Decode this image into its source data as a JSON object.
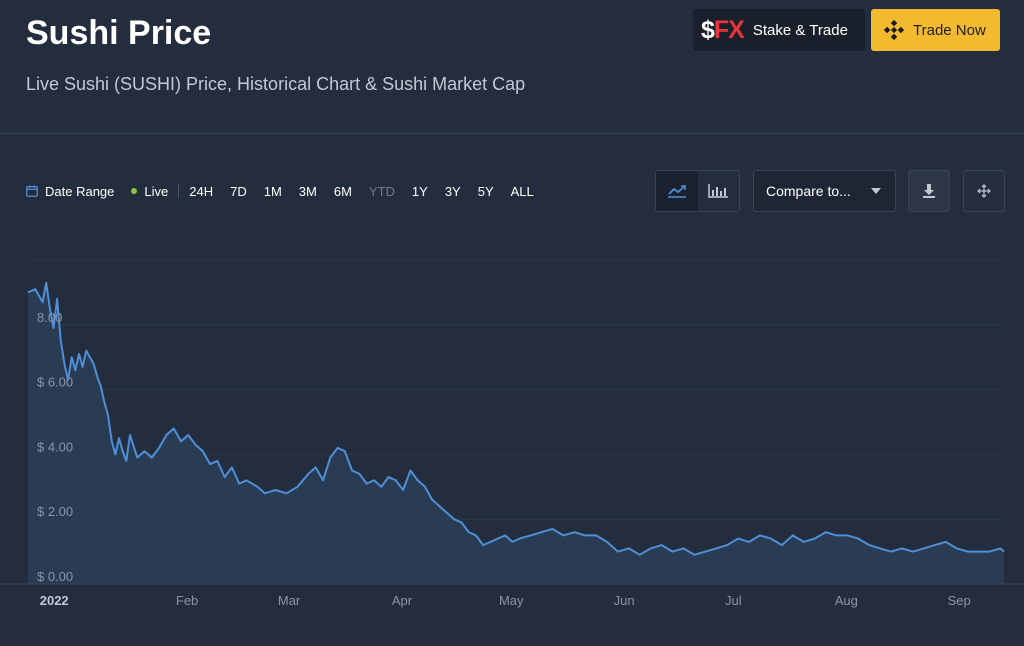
{
  "header": {
    "title": "Sushi Price",
    "subtitle": "Live Sushi (SUSHI) Price, Historical Chart & Sushi Market Cap",
    "fx_logo_prefix": "$",
    "fx_logo_text": "FX",
    "fx_button_label": "Stake & Trade",
    "trade_button_label": "Trade Now"
  },
  "toolbar": {
    "date_range_label": "Date Range",
    "live_label": "Live",
    "ranges": [
      "24H",
      "7D",
      "1M",
      "3M",
      "6M",
      "YTD",
      "1Y",
      "3Y",
      "5Y",
      "ALL"
    ],
    "disabled_range": "YTD",
    "compare_placeholder": "Compare to..."
  },
  "icons": {
    "calendar": "calendar-icon",
    "line_chart": "line-chart-icon",
    "bar_chart": "bar-chart-icon",
    "download": "download-icon",
    "fullscreen": "fullscreen-icon",
    "binance": "binance-icon",
    "dropdown": "chevron-down-icon"
  },
  "colors": {
    "background": "#232d3e",
    "line": "#4f8fd8",
    "area": "#2a3b54",
    "grid": "#2d3849",
    "axis_text": "#8b95a5",
    "accent_yellow": "#f3ba2f",
    "live_dot": "#8dc63f",
    "fx_red": "#e8363c"
  },
  "chart_data": {
    "type": "area",
    "title": "",
    "xlabel": "",
    "ylabel": "",
    "x_ticks": [
      "2022",
      "Feb",
      "Mar",
      "Apr",
      "May",
      "Jun",
      "Jul",
      "Aug",
      "Sep"
    ],
    "y_ticks": [
      "$ 0.00",
      "$ 2.00",
      "$ 4.00",
      "$ 6.00",
      "8.00"
    ],
    "ylim": [
      0,
      10
    ],
    "xlim": [
      "2021-12-27",
      "2022-09-21"
    ],
    "grid": true,
    "series": [
      {
        "x": [
          "2021-12-27",
          "2021-12-29",
          "2021-12-31",
          "2022-01-01",
          "2022-01-02",
          "2022-01-03",
          "2022-01-04",
          "2022-01-05",
          "2022-01-06",
          "2022-01-07",
          "2022-01-08",
          "2022-01-09",
          "2022-01-10",
          "2022-01-11",
          "2022-01-12",
          "2022-01-13",
          "2022-01-14",
          "2022-01-15",
          "2022-01-16",
          "2022-01-17",
          "2022-01-18",
          "2022-01-19",
          "2022-01-20",
          "2022-01-21",
          "2022-01-22",
          "2022-01-23",
          "2022-01-24",
          "2022-01-26",
          "2022-01-28",
          "2022-01-30",
          "2022-02-01",
          "2022-02-03",
          "2022-02-05",
          "2022-02-07",
          "2022-02-09",
          "2022-02-11",
          "2022-02-13",
          "2022-02-15",
          "2022-02-17",
          "2022-02-19",
          "2022-02-21",
          "2022-02-23",
          "2022-02-25",
          "2022-02-28",
          "2022-03-02",
          "2022-03-05",
          "2022-03-08",
          "2022-03-11",
          "2022-03-14",
          "2022-03-16",
          "2022-03-18",
          "2022-03-20",
          "2022-03-22",
          "2022-03-24",
          "2022-03-26",
          "2022-03-28",
          "2022-03-30",
          "2022-04-01",
          "2022-04-03",
          "2022-04-05",
          "2022-04-07",
          "2022-04-09",
          "2022-04-11",
          "2022-04-13",
          "2022-04-15",
          "2022-04-17",
          "2022-04-19",
          "2022-04-21",
          "2022-04-23",
          "2022-04-25",
          "2022-04-27",
          "2022-04-29",
          "2022-05-01",
          "2022-05-03",
          "2022-05-05",
          "2022-05-07",
          "2022-05-09",
          "2022-05-11",
          "2022-05-14",
          "2022-05-17",
          "2022-05-20",
          "2022-05-23",
          "2022-05-26",
          "2022-05-29",
          "2022-06-01",
          "2022-06-04",
          "2022-06-07",
          "2022-06-10",
          "2022-06-13",
          "2022-06-16",
          "2022-06-19",
          "2022-06-22",
          "2022-06-25",
          "2022-06-28",
          "2022-07-01",
          "2022-07-04",
          "2022-07-07",
          "2022-07-10",
          "2022-07-13",
          "2022-07-16",
          "2022-07-19",
          "2022-07-22",
          "2022-07-25",
          "2022-07-28",
          "2022-07-31",
          "2022-08-03",
          "2022-08-06",
          "2022-08-09",
          "2022-08-12",
          "2022-08-15",
          "2022-08-18",
          "2022-08-21",
          "2022-08-24",
          "2022-08-27",
          "2022-08-30",
          "2022-09-02",
          "2022-09-05",
          "2022-09-08",
          "2022-09-11",
          "2022-09-14",
          "2022-09-17",
          "2022-09-20",
          "2022-09-21"
        ],
        "y": [
          9.0,
          9.1,
          8.7,
          9.3,
          8.5,
          7.9,
          8.8,
          7.5,
          6.8,
          6.3,
          7.0,
          6.6,
          7.1,
          6.7,
          7.2,
          7.0,
          6.8,
          6.4,
          6.1,
          5.6,
          5.2,
          4.4,
          4.0,
          4.5,
          4.1,
          3.8,
          4.6,
          3.9,
          4.1,
          3.9,
          4.2,
          4.6,
          4.8,
          4.4,
          4.6,
          4.3,
          4.1,
          3.7,
          3.8,
          3.3,
          3.6,
          3.1,
          3.2,
          3.0,
          2.8,
          2.9,
          2.8,
          3.0,
          3.4,
          3.6,
          3.2,
          3.9,
          4.2,
          4.1,
          3.5,
          3.4,
          3.1,
          3.2,
          3.0,
          3.3,
          3.2,
          2.9,
          3.5,
          3.2,
          3.0,
          2.6,
          2.4,
          2.2,
          2.0,
          1.9,
          1.6,
          1.5,
          1.2,
          1.3,
          1.4,
          1.5,
          1.3,
          1.4,
          1.5,
          1.6,
          1.7,
          1.5,
          1.6,
          1.5,
          1.5,
          1.3,
          1.0,
          1.1,
          0.9,
          1.1,
          1.2,
          1.0,
          1.1,
          0.9,
          1.0,
          1.1,
          1.2,
          1.4,
          1.3,
          1.5,
          1.4,
          1.2,
          1.5,
          1.3,
          1.4,
          1.6,
          1.5,
          1.5,
          1.4,
          1.2,
          1.1,
          1.0,
          1.1,
          1.0,
          1.1,
          1.2,
          1.3,
          1.1,
          1.0,
          1.0,
          1.0,
          1.1,
          1.0
        ]
      }
    ]
  }
}
